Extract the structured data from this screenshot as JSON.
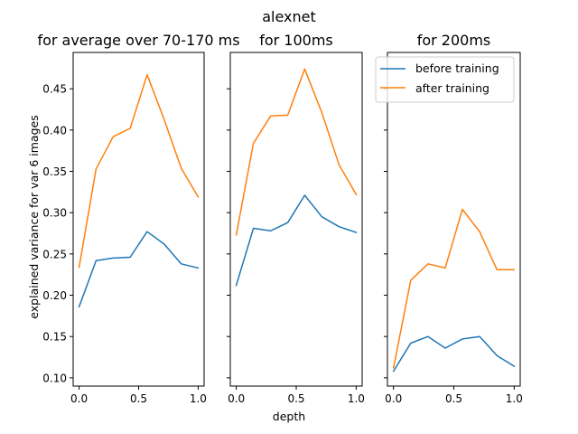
{
  "figure": {
    "suptitle": "alexnet",
    "xlabel": "depth",
    "ylabel": "explained variance for var 6 images"
  },
  "legend": {
    "placement": "top-right of third panel",
    "entries": [
      {
        "name": "before training",
        "color": "#1f77b4"
      },
      {
        "name": "after training",
        "color": "#ff7f0e"
      }
    ]
  },
  "chart_data": [
    {
      "type": "line",
      "title": "for average over 70-170 ms",
      "xlabel": "",
      "ylabel": "explained variance for var 6 images",
      "xlim": [
        -0.05,
        1.05
      ],
      "ylim": [
        0.09,
        0.494
      ],
      "xticks": [
        0.0,
        0.5,
        1.0
      ],
      "xtick_labels": [
        "0.0",
        "0.5",
        "1.0"
      ],
      "yticks": [
        0.1,
        0.15,
        0.2,
        0.25,
        0.3,
        0.35,
        0.4,
        0.45
      ],
      "ytick_labels": [
        "0.10",
        "0.15",
        "0.20",
        "0.25",
        "0.30",
        "0.35",
        "0.40",
        "0.45"
      ],
      "grid": false,
      "x": [
        0.0,
        0.143,
        0.286,
        0.429,
        0.571,
        0.714,
        0.857,
        1.0
      ],
      "series": [
        {
          "name": "before training",
          "color": "#1f77b4",
          "values": [
            0.186,
            0.242,
            0.245,
            0.246,
            0.277,
            0.262,
            0.238,
            0.233
          ]
        },
        {
          "name": "after training",
          "color": "#ff7f0e",
          "values": [
            0.234,
            0.353,
            0.392,
            0.402,
            0.467,
            0.413,
            0.354,
            0.319
          ]
        }
      ]
    },
    {
      "type": "line",
      "title": "for 100ms",
      "xlabel": "depth",
      "ylabel": "",
      "xlim": [
        -0.05,
        1.05
      ],
      "ylim": [
        0.09,
        0.494
      ],
      "xticks": [
        0.0,
        0.5,
        1.0
      ],
      "xtick_labels": [
        "0.0",
        "0.5",
        "1.0"
      ],
      "yticks": [
        0.1,
        0.15,
        0.2,
        0.25,
        0.3,
        0.35,
        0.4,
        0.45
      ],
      "ytick_labels": [],
      "grid": false,
      "x": [
        0.0,
        0.143,
        0.286,
        0.429,
        0.571,
        0.714,
        0.857,
        1.0
      ],
      "series": [
        {
          "name": "before training",
          "color": "#1f77b4",
          "values": [
            0.212,
            0.281,
            0.278,
            0.288,
            0.321,
            0.295,
            0.283,
            0.276
          ]
        },
        {
          "name": "after training",
          "color": "#ff7f0e",
          "values": [
            0.273,
            0.384,
            0.417,
            0.418,
            0.474,
            0.421,
            0.358,
            0.322
          ]
        }
      ]
    },
    {
      "type": "line",
      "title": "for 200ms",
      "xlabel": "",
      "ylabel": "",
      "xlim": [
        -0.05,
        1.05
      ],
      "ylim": [
        0.09,
        0.494
      ],
      "xticks": [
        0.0,
        0.5,
        1.0
      ],
      "xtick_labels": [
        "0.0",
        "0.5",
        "1.0"
      ],
      "yticks": [
        0.1,
        0.15,
        0.2,
        0.25,
        0.3,
        0.35,
        0.4,
        0.45
      ],
      "ytick_labels": [],
      "grid": false,
      "x": [
        0.0,
        0.143,
        0.286,
        0.429,
        0.571,
        0.714,
        0.857,
        1.0
      ],
      "series": [
        {
          "name": "before training",
          "color": "#1f77b4",
          "values": [
            0.108,
            0.142,
            0.15,
            0.136,
            0.147,
            0.15,
            0.127,
            0.114
          ]
        },
        {
          "name": "after training",
          "color": "#ff7f0e",
          "values": [
            0.112,
            0.218,
            0.238,
            0.233,
            0.304,
            0.277,
            0.231,
            0.231
          ]
        }
      ]
    }
  ]
}
